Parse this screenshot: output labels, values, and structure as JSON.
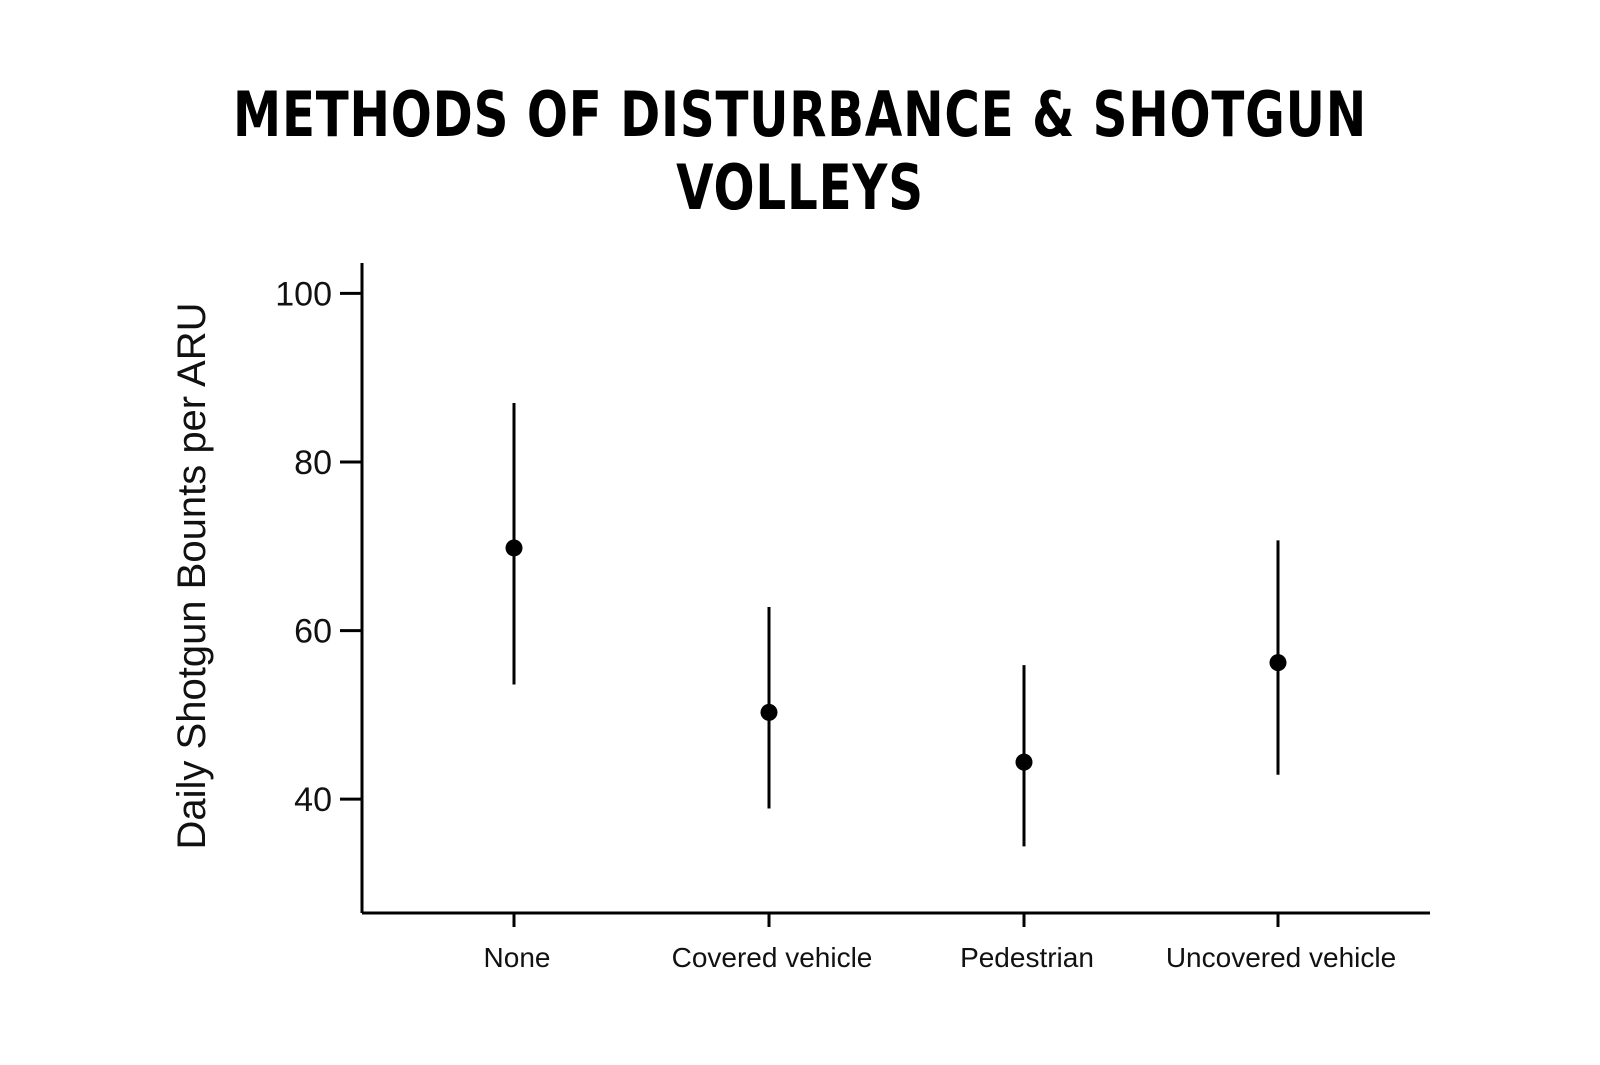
{
  "chart_data": {
    "type": "scatter",
    "title": "METHODS OF DISTURBANCE & SHOTGUN VOLLEYS",
    "xlabel": "",
    "ylabel": "Daily Shotgun Bounts per ARU",
    "categories": [
      "None",
      "Covered vehicle",
      "Pedestrian",
      "Uncovered vehicle"
    ],
    "values": [
      69.8,
      50.3,
      44.4,
      56.2
    ],
    "error_low": [
      53.6,
      38.9,
      34.4,
      42.9
    ],
    "error_high": [
      87.0,
      62.8,
      55.9,
      70.7
    ],
    "yticks": [
      40,
      60,
      80,
      100
    ],
    "ylim": [
      26.5,
      103.6
    ],
    "grid": false,
    "color": "#000000"
  }
}
